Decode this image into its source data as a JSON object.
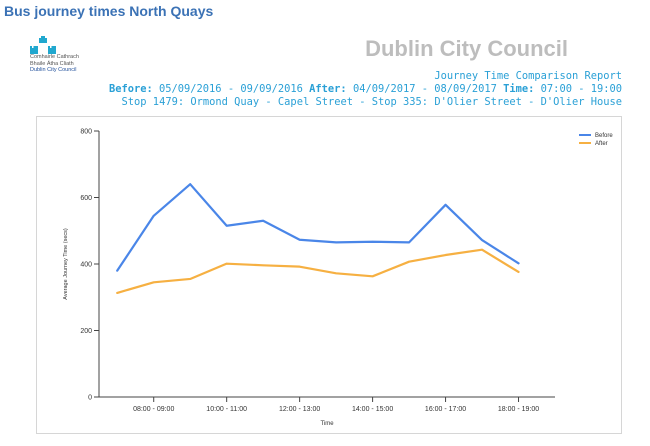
{
  "page_title": "Bus journey times North Quays",
  "logo": {
    "line1": "Comhairle Cathrach",
    "line2": "Bhaile Átha Cliath",
    "line3": "Dublin City Council"
  },
  "council_name": "Dublin City Council",
  "report": {
    "title": "Journey Time Comparison Report",
    "before_label": "Before:",
    "before_range": "05/09/2016 - 09/09/2016",
    "after_label": "After:",
    "after_range": "04/09/2017 - 08/09/2017",
    "time_label": "Time:",
    "time_range": "07:00 - 19:00",
    "route": "Stop 1479: Ormond Quay - Capel Street - Stop 335: D'Olier Street - D'Olier House"
  },
  "colors": {
    "before": "#4a86e8",
    "after": "#f6b042",
    "axis": "#444444"
  },
  "chart_data": {
    "type": "line",
    "title": "",
    "xlabel": "Time",
    "ylabel": "Average Journey Time (secs)",
    "ylim": [
      0,
      800
    ],
    "yticks": [
      0,
      200,
      400,
      600,
      800
    ],
    "xlim": [
      7,
      19.5
    ],
    "xticks": [
      {
        "x": 8.5,
        "label": "08:00 - 09:00"
      },
      {
        "x": 10.5,
        "label": "10:00 - 11:00"
      },
      {
        "x": 12.5,
        "label": "12:00 - 13:00"
      },
      {
        "x": 14.5,
        "label": "14:00 - 15:00"
      },
      {
        "x": 16.5,
        "label": "16:00 - 17:00"
      },
      {
        "x": 18.5,
        "label": "18:00 - 19:00"
      }
    ],
    "legend_position": "top-right",
    "grid": false,
    "x": [
      7.5,
      8.5,
      9.5,
      10.5,
      11.5,
      12.5,
      13.5,
      14.5,
      15.5,
      16.5,
      17.5,
      18.5
    ],
    "series": [
      {
        "name": "Before",
        "color": "#4a86e8",
        "values": [
          380,
          545,
          640,
          515,
          530,
          473,
          465,
          467,
          465,
          578,
          472,
          402
        ]
      },
      {
        "name": "After",
        "color": "#f6b042",
        "values": [
          313,
          345,
          355,
          401,
          396,
          392,
          372,
          363,
          407,
          427,
          443,
          376
        ]
      }
    ]
  }
}
